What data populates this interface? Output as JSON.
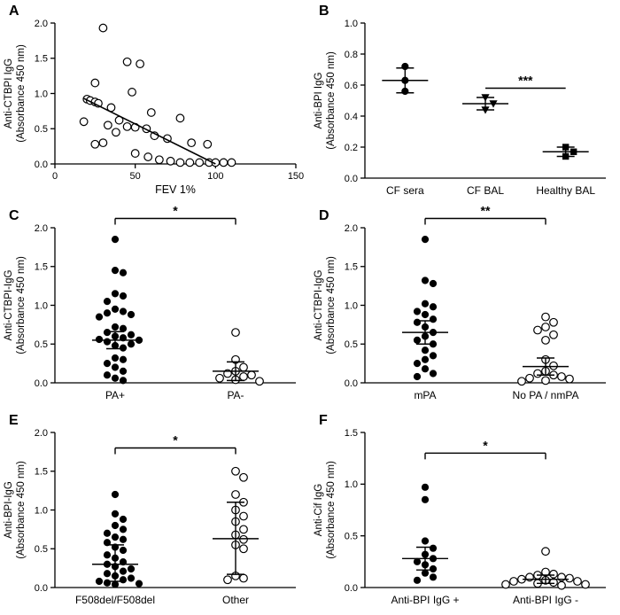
{
  "colors": {
    "marker": "#000000",
    "background": "#ffffff"
  },
  "chart_data": {
    "type": "multi-panel-scatter",
    "panels": [
      {
        "label": "A",
        "type": "scatter",
        "ylabel": [
          "Anti-CTBPI IgG",
          "(Absorbance 450 nm)"
        ],
        "xlabel": "FEV 1%",
        "xlim": [
          0,
          150
        ],
        "xticks": [
          0,
          50,
          100,
          150
        ],
        "xtick_labels": [
          "0",
          "50",
          "100",
          "150"
        ],
        "ylim": [
          0,
          2
        ],
        "yticks": [
          0,
          0.5,
          1,
          1.5,
          2
        ],
        "ytick_labels": [
          "0.0",
          "0.5",
          "1.0",
          "1.5",
          "2.0"
        ],
        "marker": "open-circle",
        "points": [
          [
            30,
            1.93
          ],
          [
            45,
            1.45
          ],
          [
            53,
            1.42
          ],
          [
            25,
            1.15
          ],
          [
            48,
            1.02
          ],
          [
            20,
            0.92
          ],
          [
            22,
            0.9
          ],
          [
            25,
            0.88
          ],
          [
            27,
            0.86
          ],
          [
            35,
            0.8
          ],
          [
            60,
            0.73
          ],
          [
            78,
            0.65
          ],
          [
            40,
            0.62
          ],
          [
            18,
            0.6
          ],
          [
            33,
            0.55
          ],
          [
            45,
            0.53
          ],
          [
            50,
            0.52
          ],
          [
            57,
            0.5
          ],
          [
            38,
            0.45
          ],
          [
            62,
            0.4
          ],
          [
            70,
            0.36
          ],
          [
            30,
            0.3
          ],
          [
            25,
            0.28
          ],
          [
            85,
            0.3
          ],
          [
            95,
            0.28
          ],
          [
            50,
            0.15
          ],
          [
            58,
            0.1
          ],
          [
            65,
            0.06
          ],
          [
            72,
            0.04
          ],
          [
            78,
            0.02
          ],
          [
            84,
            0.02
          ],
          [
            90,
            0.02
          ],
          [
            96,
            0.02
          ],
          [
            100,
            0.02
          ],
          [
            105,
            0.02
          ],
          [
            110,
            0.02
          ]
        ],
        "trend_line": {
          "x1": 18,
          "y1": 0.93,
          "x2": 100,
          "y2": 0
        }
      },
      {
        "label": "B",
        "type": "grouped-scatter",
        "ylabel": [
          "Anti-BPI IgG",
          "(Absorbance 450 nm)"
        ],
        "ylim": [
          0,
          1
        ],
        "yticks": [
          0,
          0.2,
          0.4,
          0.6,
          0.8,
          1
        ],
        "ytick_labels": [
          "0.0",
          "0.2",
          "0.4",
          "0.6",
          "0.8",
          "1.0"
        ],
        "groups": [
          {
            "name": "CF sera",
            "marker": "filled-circle",
            "values": [
              0.72,
              0.63,
              0.56
            ],
            "mean": 0.63,
            "err": [
              0.55,
              0.71
            ]
          },
          {
            "name": "CF BAL",
            "marker": "filled-triangle",
            "values": [
              0.52,
              0.48,
              0.44
            ],
            "mean": 0.48,
            "err": [
              0.44,
              0.52
            ]
          },
          {
            "name": "Healthy BAL",
            "marker": "filled-square",
            "values": [
              0.2,
              0.17,
              0.14
            ],
            "mean": 0.17,
            "err": [
              0.14,
              0.2
            ]
          }
        ],
        "significance": {
          "between": [
            1,
            2
          ],
          "y": 0.58,
          "label": "***",
          "style": "line"
        }
      },
      {
        "label": "C",
        "type": "grouped-scatter",
        "ylabel": [
          "Anti-CTBPI-IgG",
          "(Absorbance 450 nm)"
        ],
        "ylim": [
          0,
          2
        ],
        "yticks": [
          0,
          0.5,
          1,
          1.5,
          2
        ],
        "ytick_labels": [
          "0.0",
          "0.5",
          "1.0",
          "1.5",
          "2.0"
        ],
        "groups": [
          {
            "name": "PA+",
            "marker": "filled-circle",
            "values": [
              1.85,
              1.45,
              1.42,
              1.15,
              1.12,
              1.05,
              0.95,
              0.92,
              0.9,
              0.88,
              0.85,
              0.72,
              0.7,
              0.65,
              0.62,
              0.6,
              0.58,
              0.56,
              0.55,
              0.53,
              0.5,
              0.48,
              0.45,
              0.32,
              0.3,
              0.25,
              0.2,
              0.15,
              0.1,
              0.06,
              0.03
            ],
            "mean": 0.55,
            "err": [
              0.44,
              0.66
            ]
          },
          {
            "name": "PA-",
            "marker": "open-circle",
            "values": [
              0.65,
              0.3,
              0.2,
              0.15,
              0.12,
              0.1,
              0.08,
              0.06,
              0.04,
              0.02
            ],
            "mean": 0.15,
            "err": [
              0.03,
              0.27
            ]
          }
        ],
        "significance": {
          "between": [
            0,
            1
          ],
          "y": 2.12,
          "label": "*",
          "style": "bracket"
        }
      },
      {
        "label": "D",
        "type": "grouped-scatter",
        "ylabel": [
          "Anti-CTBPI-IgG",
          "(Absorbance 450 nm)"
        ],
        "ylim": [
          0,
          2
        ],
        "yticks": [
          0,
          0.5,
          1,
          1.5,
          2
        ],
        "ytick_labels": [
          "0.0",
          "0.5",
          "1.0",
          "1.5",
          "2.0"
        ],
        "groups": [
          {
            "name": "mPA",
            "marker": "filled-circle",
            "values": [
              1.85,
              1.32,
              1.28,
              1.02,
              0.98,
              0.92,
              0.88,
              0.82,
              0.78,
              0.72,
              0.65,
              0.6,
              0.55,
              0.5,
              0.42,
              0.35,
              0.3,
              0.25,
              0.18,
              0.12,
              0.08
            ],
            "mean": 0.65,
            "err": [
              0.5,
              0.8
            ]
          },
          {
            "name": "No PA / nmPA",
            "marker": "open-circle",
            "values": [
              0.85,
              0.78,
              0.72,
              0.68,
              0.62,
              0.55,
              0.3,
              0.22,
              0.15,
              0.12,
              0.1,
              0.08,
              0.06,
              0.05,
              0.03,
              0.02
            ],
            "mean": 0.21,
            "err": [
              0.1,
              0.32
            ]
          }
        ],
        "significance": {
          "between": [
            0,
            1
          ],
          "y": 2.12,
          "label": "**",
          "style": "bracket"
        }
      },
      {
        "label": "E",
        "type": "grouped-scatter",
        "ylabel": [
          "Anti-BPI-IgG",
          "(Absorbance 450 nm)"
        ],
        "ylim": [
          0,
          2
        ],
        "yticks": [
          0,
          0.5,
          1,
          1.5,
          2
        ],
        "ytick_labels": [
          "0.0",
          "0.5",
          "1.0",
          "1.5",
          "2.0"
        ],
        "groups": [
          {
            "name": "F508del/F508del",
            "marker": "filled-circle",
            "values": [
              1.2,
              0.95,
              0.88,
              0.8,
              0.75,
              0.7,
              0.65,
              0.62,
              0.58,
              0.52,
              0.48,
              0.42,
              0.38,
              0.33,
              0.3,
              0.27,
              0.24,
              0.21,
              0.18,
              0.15,
              0.12,
              0.1,
              0.08,
              0.06,
              0.05,
              0.04
            ],
            "mean": 0.3,
            "err": [
              0.08,
              0.55
            ]
          },
          {
            "name": "Other",
            "marker": "open-circle",
            "values": [
              1.5,
              1.42,
              1.2,
              1.1,
              1.0,
              0.92,
              0.85,
              0.75,
              0.68,
              0.62,
              0.55,
              0.5,
              0.15,
              0.12,
              0.1
            ],
            "mean": 0.63,
            "err": [
              0.17,
              1.1
            ]
          }
        ],
        "significance": {
          "between": [
            0,
            1
          ],
          "y": 1.8,
          "label": "*",
          "style": "bracket"
        }
      },
      {
        "label": "F",
        "type": "grouped-scatter",
        "ylabel": [
          "Anti-Cif IgG",
          "(Absorbance 450 nm)"
        ],
        "ylim": [
          0,
          1.5
        ],
        "yticks": [
          0,
          0.5,
          1,
          1.5
        ],
        "ytick_labels": [
          "0.0",
          "0.5",
          "1.0",
          "1.5"
        ],
        "groups": [
          {
            "name": "Anti-BPI IgG +",
            "marker": "filled-circle",
            "values": [
              0.97,
              0.85,
              0.45,
              0.38,
              0.32,
              0.28,
              0.25,
              0.22,
              0.18,
              0.14,
              0.1,
              0.07
            ],
            "mean": 0.28,
            "err": [
              0.17,
              0.39
            ]
          },
          {
            "name": "Anti-BPI IgG -",
            "marker": "open-circle",
            "values": [
              0.35,
              0.15,
              0.13,
              0.12,
              0.1,
              0.1,
              0.09,
              0.08,
              0.07,
              0.06,
              0.06,
              0.05,
              0.04,
              0.03,
              0.03,
              0.02
            ],
            "mean": 0.08,
            "err": [
              0.04,
              0.12
            ]
          }
        ],
        "significance": {
          "between": [
            0,
            1
          ],
          "y": 1.3,
          "label": "*",
          "style": "bracket"
        }
      }
    ]
  }
}
